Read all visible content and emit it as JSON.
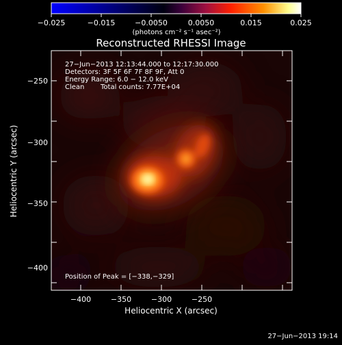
{
  "colorbar": {
    "ticks": [
      "−0.025",
      "−0.015",
      "−0.0050",
      "0.0050",
      "0.015",
      "0.025"
    ],
    "units": "(photons cm⁻² s⁻¹ asec⁻²)",
    "colors": [
      "#0000ff",
      "#000000",
      "#800080",
      "#ff0000",
      "#ff8000",
      "#ffff80",
      "#ffffff"
    ]
  },
  "title": "Reconstructed RHESSI Image",
  "info": {
    "line1": "27−Jun−2013 12:13:44.000 to 12:17:30.000",
    "line2": "Detectors: 3F 5F 6F 7F 8F 9F, Att 0",
    "line3": "Energy Range: 6.0 − 12.0 keV",
    "line4_method": "Clean",
    "line4_counts": "Total counts: 7.77E+04",
    "peak": "Position of Peak = [−338,−329]"
  },
  "axes": {
    "xlabel": "Heliocentric X (arcsec)",
    "ylabel": "Heliocentric Y (arcsec)",
    "xticks": [
      "−400",
      "−350",
      "−300",
      "−250"
    ],
    "yticks": [
      "−250",
      "−300",
      "−350",
      "−400"
    ]
  },
  "timestamp": "27−Jun−2013 19:14"
}
